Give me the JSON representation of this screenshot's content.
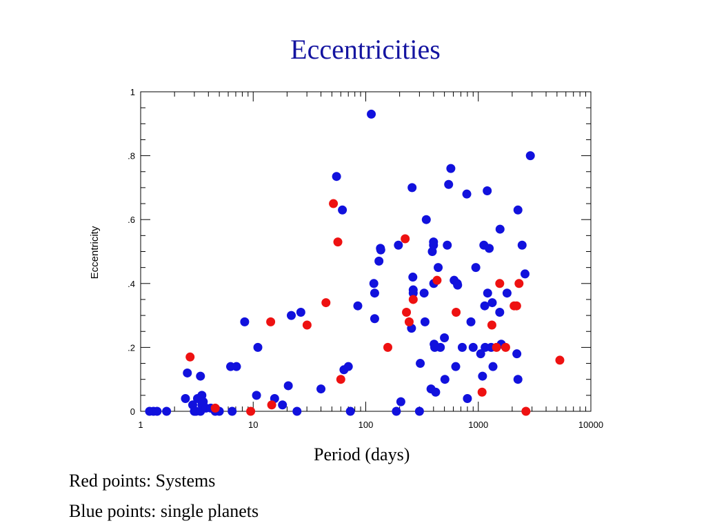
{
  "slide": {
    "title": "Eccentricities",
    "notes": [
      "Red points: Systems",
      "Blue points: single planets"
    ]
  },
  "colors": {
    "systems": "#ee1111",
    "single": "#1111dd",
    "title": "#1414a0"
  },
  "chart_data": {
    "type": "scatter",
    "title": "",
    "xlabel": "Period (days)",
    "ylabel": "Eccentricity",
    "xscale": "log",
    "xlim": [
      1,
      10000
    ],
    "ylim": [
      0,
      1
    ],
    "grid": false,
    "x_ticks": [
      {
        "value": 1,
        "label": "1"
      },
      {
        "value": 10,
        "label": "10"
      },
      {
        "value": 100,
        "label": "100"
      },
      {
        "value": 1000,
        "label": "1000"
      },
      {
        "value": 10000,
        "label": "10000"
      }
    ],
    "y_ticks": [
      {
        "value": 0,
        "label": "0"
      },
      {
        "value": 0.2,
        "label": ".2"
      },
      {
        "value": 0.4,
        "label": ".4"
      },
      {
        "value": 0.6,
        "label": ".6"
      },
      {
        "value": 0.8,
        "label": ".8"
      },
      {
        "value": 1,
        "label": "1"
      }
    ],
    "series": [
      {
        "name": "Systems",
        "color": "#ee1111",
        "points": [
          [
            2.75,
            0.17
          ],
          [
            4.6,
            0.01
          ],
          [
            9.5,
            0.0
          ],
          [
            14.3,
            0.28
          ],
          [
            14.6,
            0.02
          ],
          [
            30.1,
            0.27
          ],
          [
            44.3,
            0.34
          ],
          [
            51.6,
            0.65
          ],
          [
            56.5,
            0.53
          ],
          [
            60,
            0.1
          ],
          [
            157,
            0.2
          ],
          [
            224,
            0.54
          ],
          [
            230,
            0.31
          ],
          [
            243,
            0.28
          ],
          [
            264,
            0.35
          ],
          [
            430,
            0.41
          ],
          [
            635,
            0.31
          ],
          [
            1080,
            0.06
          ],
          [
            1320,
            0.27
          ],
          [
            1450,
            0.2
          ],
          [
            1550,
            0.4
          ],
          [
            1750,
            0.2
          ],
          [
            2080,
            0.33
          ],
          [
            2190,
            0.33
          ],
          [
            2300,
            0.4
          ],
          [
            2650,
            0.0
          ],
          [
            5300,
            0.16
          ]
        ]
      },
      {
        "name": "single planets",
        "color": "#1111dd",
        "points": [
          [
            1.2,
            0.0
          ],
          [
            1.3,
            0.0
          ],
          [
            1.4,
            0.0
          ],
          [
            1.7,
            0.0
          ],
          [
            2.5,
            0.04
          ],
          [
            2.6,
            0.12
          ],
          [
            2.9,
            0.02
          ],
          [
            3.0,
            0.0
          ],
          [
            3.1,
            0.0
          ],
          [
            3.2,
            0.04
          ],
          [
            3.4,
            0.0
          ],
          [
            3.4,
            0.11
          ],
          [
            3.5,
            0.05
          ],
          [
            3.5,
            0.02
          ],
          [
            3.6,
            0.03
          ],
          [
            3.8,
            0.01
          ],
          [
            4.2,
            0.01
          ],
          [
            4.6,
            0.0
          ],
          [
            5.0,
            0.0
          ],
          [
            6.3,
            0.14
          ],
          [
            6.5,
            0.0
          ],
          [
            7.1,
            0.14
          ],
          [
            8.4,
            0.28
          ],
          [
            10.7,
            0.05
          ],
          [
            11.0,
            0.2
          ],
          [
            15.5,
            0.04
          ],
          [
            18.2,
            0.02
          ],
          [
            20.5,
            0.08
          ],
          [
            21.8,
            0.3
          ],
          [
            24.5,
            0.0
          ],
          [
            26.5,
            0.31
          ],
          [
            40,
            0.07
          ],
          [
            55,
            0.735
          ],
          [
            62,
            0.63
          ],
          [
            64,
            0.13
          ],
          [
            70,
            0.14
          ],
          [
            73,
            0.0
          ],
          [
            85,
            0.33
          ],
          [
            112,
            0.93
          ],
          [
            118,
            0.4
          ],
          [
            120,
            0.37
          ],
          [
            120,
            0.29
          ],
          [
            131,
            0.47
          ],
          [
            135,
            0.51
          ],
          [
            136,
            0.505
          ],
          [
            187,
            0.0
          ],
          [
            195,
            0.52
          ],
          [
            205,
            0.03
          ],
          [
            255,
            0.26
          ],
          [
            258,
            0.7
          ],
          [
            262,
            0.42
          ],
          [
            264,
            0.38
          ],
          [
            264,
            0.37
          ],
          [
            300,
            0.0
          ],
          [
            305,
            0.15
          ],
          [
            330,
            0.37
          ],
          [
            336,
            0.28
          ],
          [
            345,
            0.6
          ],
          [
            380,
            0.07
          ],
          [
            390,
            0.5
          ],
          [
            400,
            0.52
          ],
          [
            400,
            0.53
          ],
          [
            402,
            0.4
          ],
          [
            405,
            0.21
          ],
          [
            410,
            0.2
          ],
          [
            418,
            0.06
          ],
          [
            440,
            0.45
          ],
          [
            460,
            0.2
          ],
          [
            500,
            0.23
          ],
          [
            505,
            0.1
          ],
          [
            530,
            0.52
          ],
          [
            545,
            0.71
          ],
          [
            570,
            0.76
          ],
          [
            610,
            0.41
          ],
          [
            630,
            0.14
          ],
          [
            650,
            0.4
          ],
          [
            655,
            0.395
          ],
          [
            720,
            0.2
          ],
          [
            790,
            0.68
          ],
          [
            800,
            0.04
          ],
          [
            860,
            0.28
          ],
          [
            900,
            0.2
          ],
          [
            950,
            0.45
          ],
          [
            1050,
            0.18
          ],
          [
            1090,
            0.11
          ],
          [
            1120,
            0.52
          ],
          [
            1140,
            0.33
          ],
          [
            1150,
            0.2
          ],
          [
            1200,
            0.69
          ],
          [
            1210,
            0.37
          ],
          [
            1250,
            0.51
          ],
          [
            1300,
            0.2
          ],
          [
            1330,
            0.34
          ],
          [
            1350,
            0.14
          ],
          [
            1550,
            0.31
          ],
          [
            1560,
            0.57
          ],
          [
            1600,
            0.21
          ],
          [
            1800,
            0.37
          ],
          [
            2200,
            0.18
          ],
          [
            2250,
            0.1
          ],
          [
            2250,
            0.63
          ],
          [
            2450,
            0.52
          ],
          [
            2600,
            0.43
          ],
          [
            2900,
            0.8
          ]
        ]
      }
    ]
  }
}
